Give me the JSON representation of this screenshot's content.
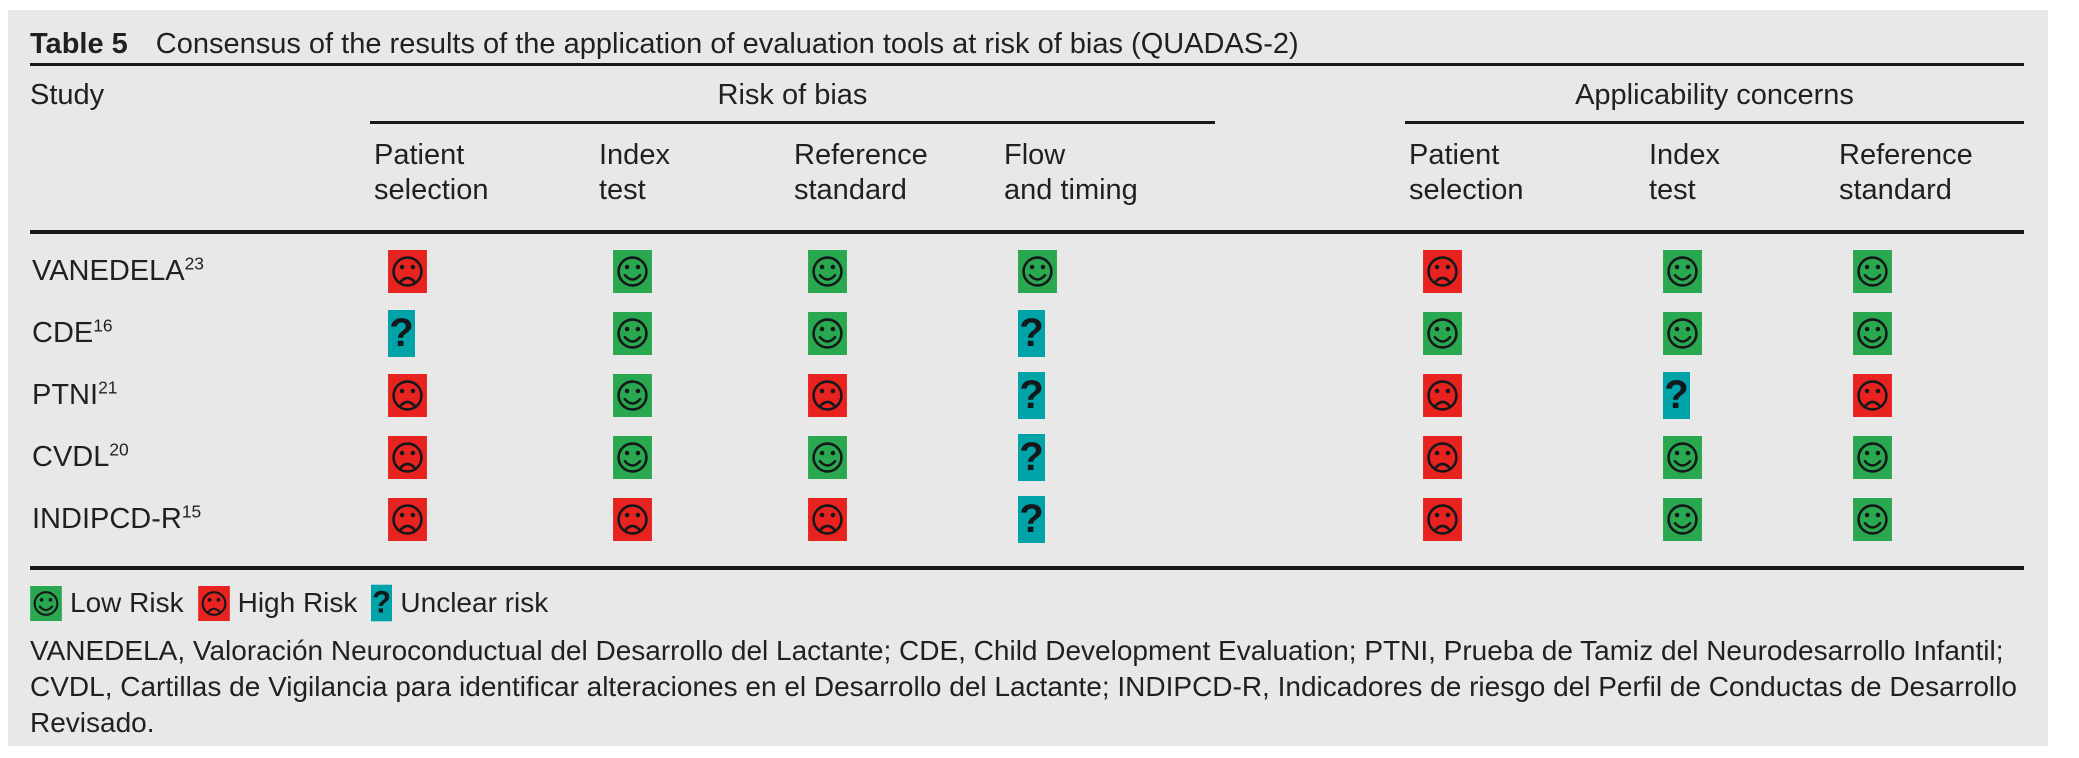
{
  "title": {
    "label": "Table 5",
    "text": "Consensus of the results of the application of evaluation tools at risk of bias (QUADAS-2)"
  },
  "table": {
    "study_header": "Study",
    "groups": [
      {
        "label": "Risk of bias",
        "columns": [
          "Patient\nselection",
          "Index\ntest",
          "Reference\nstandard",
          "Flow\nand timing"
        ]
      },
      {
        "label": "Applicability concerns",
        "columns": [
          "Patient\nselection",
          "Index\ntest",
          "Reference\nstandard"
        ]
      }
    ],
    "rows": [
      {
        "study": "VANEDELA",
        "ref": "23",
        "risk_of_bias": [
          "high",
          "low",
          "low",
          "low"
        ],
        "applicability": [
          "high",
          "low",
          "low"
        ]
      },
      {
        "study": "CDE",
        "ref": "16",
        "risk_of_bias": [
          "unclear",
          "low",
          "low",
          "unclear"
        ],
        "applicability": [
          "low",
          "low",
          "low"
        ]
      },
      {
        "study": "PTNI",
        "ref": "21",
        "risk_of_bias": [
          "high",
          "low",
          "high",
          "unclear"
        ],
        "applicability": [
          "high",
          "unclear",
          "high"
        ]
      },
      {
        "study": "CVDL",
        "ref": "20",
        "risk_of_bias": [
          "high",
          "low",
          "low",
          "unclear"
        ],
        "applicability": [
          "high",
          "low",
          "low"
        ]
      },
      {
        "study": "INDIPCD-R",
        "ref": "15",
        "risk_of_bias": [
          "high",
          "high",
          "high",
          "unclear"
        ],
        "applicability": [
          "high",
          "low",
          "low"
        ]
      }
    ]
  },
  "legend": [
    {
      "icon": "low",
      "label": "Low Risk"
    },
    {
      "icon": "high",
      "label": "High Risk"
    },
    {
      "icon": "unclear",
      "label": "Unclear risk"
    }
  ],
  "footnote": "VANEDELA, Valoración Neuroconductual del Desarrollo del Lactante; CDE, Child Development Evaluation; PTNI, Prueba de Tamiz del Neurodesarrollo Infantil; CVDL, Cartillas de Vigilancia para identificar alteraciones en el Desarrollo del Lactante; INDIPCD-R, Indicadores de riesgo del Perfil de Conductas de Desarrollo Revisado.",
  "colors": {
    "low": "#2aa850",
    "high": "#e8231f",
    "unclear": "#00a3a8",
    "glyph": "#14181a",
    "panel_bg": "#e8e8e9",
    "rule": "#1a1a1a",
    "text": "#231f20"
  }
}
